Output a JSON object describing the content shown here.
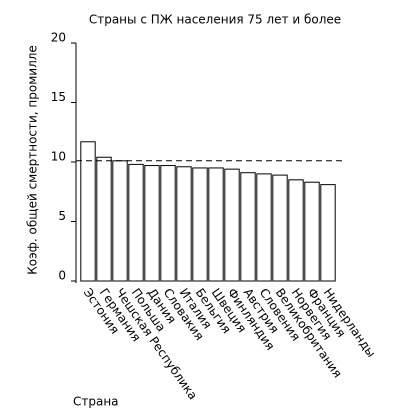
{
  "chart_data": {
    "type": "bar",
    "title": "Страны с ПЖ населения 75 лет и более",
    "x_label": "Страна",
    "y_label": "Коэф. общей смертности, промилле",
    "categories": [
      "Эстония",
      "Германия",
      "Чешская Республика",
      "Польша",
      "Дания",
      "Словакия",
      "Италия",
      "Бельгия",
      "Швеция",
      "Финляндия",
      "Австрия",
      "Словения",
      "Великобритания",
      "Норвегия",
      "Франция",
      "Нидерланды"
    ],
    "values": [
      11.7,
      10.4,
      10.1,
      9.8,
      9.7,
      9.7,
      9.6,
      9.5,
      9.5,
      9.4,
      9.1,
      9.0,
      8.9,
      8.5,
      8.3,
      8.1
    ],
    "color": "#ffffff",
    "reference_line": 10.1,
    "ylim": [
      0,
      20
    ],
    "yticks": [
      0,
      5,
      10,
      15,
      20
    ],
    "grid": false
  }
}
